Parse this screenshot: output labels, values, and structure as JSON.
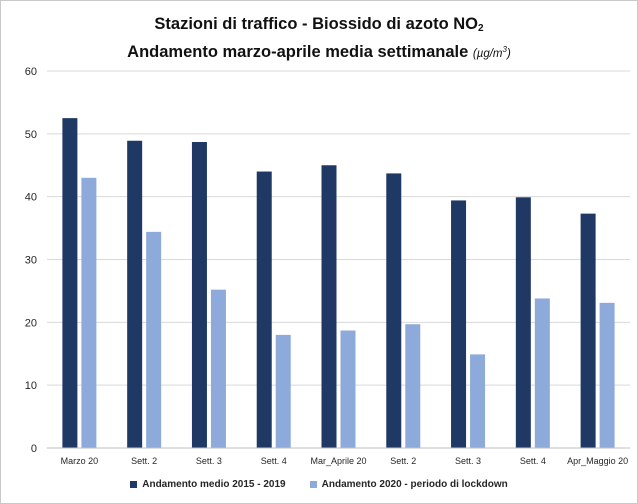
{
  "chart_data": {
    "type": "bar",
    "title_parts": [
      "Stazioni  di traffico - Biossido di azoto NO",
      "2"
    ],
    "subtitle_parts": [
      "Andamento marzo-aprile media settimanale",
      "(µg/m",
      "3",
      ")"
    ],
    "categories": [
      "Marzo 20",
      "Sett. 2",
      "Sett. 3",
      "Sett. 4",
      "Mar_Aprile 20",
      "Sett. 2",
      "Sett. 3",
      "Sett. 4",
      "Apr_Maggio 20"
    ],
    "series": [
      {
        "name": "Andamento medio 2015 - 2019",
        "color": "#1f3864",
        "values": [
          52.5,
          48.9,
          48.7,
          44.0,
          45.0,
          43.7,
          39.4,
          39.9,
          37.3
        ]
      },
      {
        "name": "Andamento 2020 - periodo di lockdown",
        "color": "#8eaadb",
        "values": [
          43.0,
          34.4,
          25.2,
          18.0,
          18.7,
          19.7,
          14.9,
          23.8,
          23.1
        ]
      }
    ],
    "yticks": [
      "0",
      "10",
      "20",
      "30",
      "40",
      "50",
      "60"
    ],
    "ylim": [
      0,
      60
    ],
    "grid": true,
    "legend_position": "bottom"
  }
}
